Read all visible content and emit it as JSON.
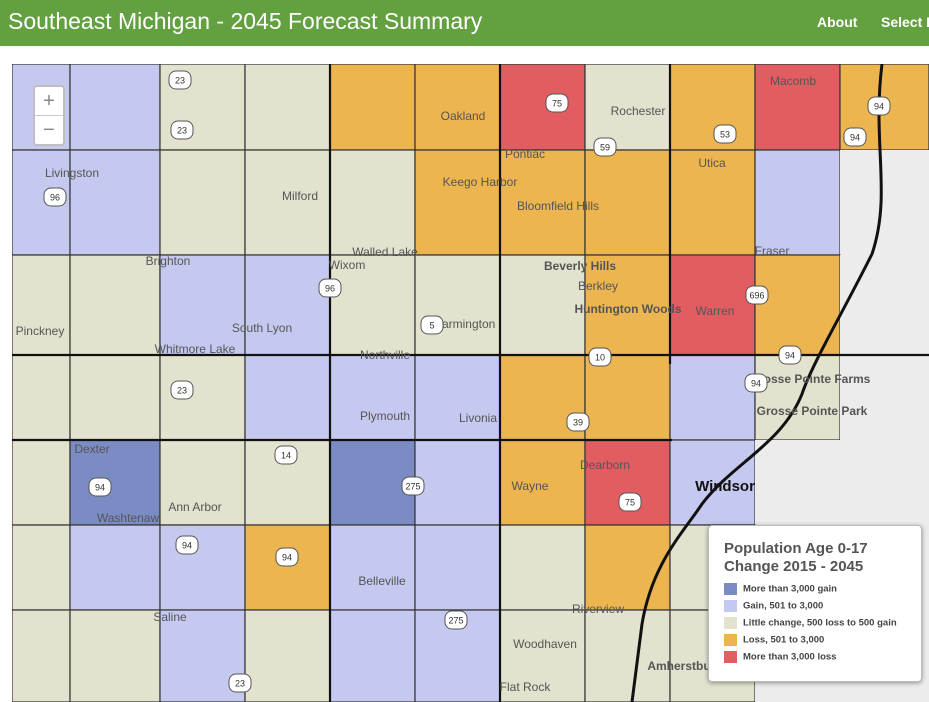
{
  "header": {
    "title": "Southeast Michigan - 2045 Forecast Summary",
    "nav": [
      "About",
      "Select F"
    ]
  },
  "zoom": [
    "+",
    "−"
  ],
  "map": {
    "labels": [
      "Oakland",
      "Pontiac",
      "Bloomfield Hills",
      "Livingston",
      "Milford",
      "Macomb",
      "Warren",
      "Livonia",
      "Dearborn",
      "Wayne",
      "Windsor",
      "Washtenaw",
      "Ann Arbor",
      "South Lyon",
      "Whitmore Lake",
      "Northville",
      "Plymouth",
      "Brighton",
      "Pinckney",
      "Dexter",
      "Saline",
      "Belleville",
      "Woodhaven",
      "Flat Rock",
      "Riverview",
      "Walled Lake",
      "Wixom",
      "Farmington",
      "Berkley",
      "Keego Harbor",
      "Rochester",
      "Utica",
      "Fraser",
      "Grosse Pointe Farms",
      "Grosse Pointe Park",
      "Huntington Woods",
      "Beverly Hills",
      "Amherstburg"
    ],
    "shields": [
      "23",
      "23",
      "23",
      "23",
      "75",
      "75",
      "96",
      "96",
      "59",
      "53",
      "94",
      "94",
      "94",
      "94",
      "94",
      "94",
      "94",
      "275",
      "275",
      "696",
      "10",
      "39",
      "14",
      "5"
    ]
  },
  "legend": {
    "title": [
      "Population Age 0-17",
      "Change 2015 - 2045"
    ],
    "items": [
      {
        "label": "More than 3,000 gain",
        "color": "#7b8cc4"
      },
      {
        "label": "Gain, 501 to 3,000",
        "color": "#c5c9ef"
      },
      {
        "label": "Little change, 500 loss to 500 gain",
        "color": "#e2e2cf"
      },
      {
        "label": "Loss, 501 to 3,000",
        "color": "#ecb550"
      },
      {
        "label": "More than 3,000 loss",
        "color": "#e15d62"
      }
    ]
  }
}
